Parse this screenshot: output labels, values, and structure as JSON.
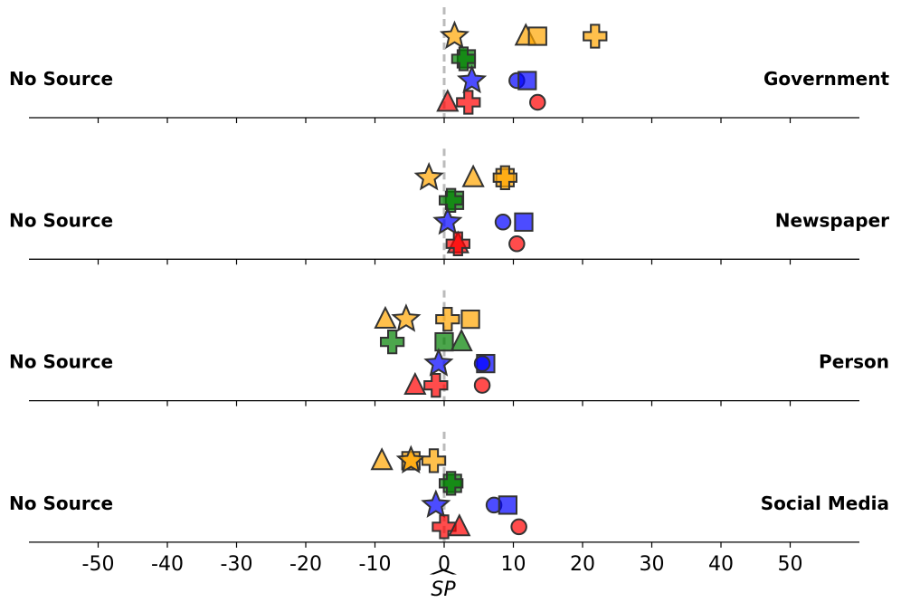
{
  "chart_data": {
    "type": "scatter",
    "xlabel": "SP",
    "xlabel_hat": "^",
    "xlim": [
      -60,
      60
    ],
    "xticks": [
      -50,
      -40,
      -30,
      -20,
      -10,
      0,
      10,
      20,
      30,
      40,
      50
    ],
    "xtick_labels": [
      "-50",
      "-40",
      "-30",
      "-20",
      "-10",
      "0",
      "10",
      "20",
      "30",
      "40",
      "50"
    ],
    "reference_line_x": 0,
    "colors": {
      "orange": "#FFA500",
      "green": "#008000",
      "blue": "#0000FF",
      "red": "#FF0000",
      "ref_line": "#BBBBBB"
    },
    "panels": [
      {
        "left_label": "No Source",
        "right_label": "Government",
        "points": [
          {
            "color": "orange",
            "marker": "star",
            "row": 0,
            "x": 1.5
          },
          {
            "color": "orange",
            "marker": "triangle",
            "row": 0,
            "x": 11.8
          },
          {
            "color": "orange",
            "marker": "square",
            "row": 0,
            "x": 13.5
          },
          {
            "color": "orange",
            "marker": "plus",
            "row": 0,
            "x": 21.8
          },
          {
            "color": "green",
            "marker": "square",
            "row": 1,
            "x": 3.2
          },
          {
            "color": "green",
            "marker": "plus",
            "row": 1,
            "x": 2.8
          },
          {
            "color": "blue",
            "marker": "star",
            "row": 2,
            "x": 4.0
          },
          {
            "color": "blue",
            "marker": "circle",
            "row": 2,
            "x": 10.5
          },
          {
            "color": "blue",
            "marker": "square",
            "row": 2,
            "x": 12.0
          },
          {
            "color": "red",
            "marker": "triangle",
            "row": 3,
            "x": 0.5
          },
          {
            "color": "red",
            "marker": "plus",
            "row": 3,
            "x": 3.5
          },
          {
            "color": "red",
            "marker": "circle",
            "row": 3,
            "x": 13.5
          }
        ]
      },
      {
        "left_label": "No Source",
        "right_label": "Newspaper",
        "points": [
          {
            "color": "orange",
            "marker": "star",
            "row": 0,
            "x": -2.2
          },
          {
            "color": "orange",
            "marker": "triangle",
            "row": 0,
            "x": 4.2
          },
          {
            "color": "orange",
            "marker": "square",
            "row": 0,
            "x": 8.8
          },
          {
            "color": "orange",
            "marker": "plus",
            "row": 0,
            "x": 8.8
          },
          {
            "color": "green",
            "marker": "square",
            "row": 1,
            "x": 1.5
          },
          {
            "color": "green",
            "marker": "plus",
            "row": 1,
            "x": 1.0
          },
          {
            "color": "blue",
            "marker": "star",
            "row": 2,
            "x": 0.5
          },
          {
            "color": "blue",
            "marker": "circle",
            "row": 2,
            "x": 8.5
          },
          {
            "color": "blue",
            "marker": "square",
            "row": 2,
            "x": 11.5
          },
          {
            "color": "red",
            "marker": "triangle",
            "row": 3,
            "x": 2.0
          },
          {
            "color": "red",
            "marker": "plus",
            "row": 3,
            "x": 2.0
          },
          {
            "color": "red",
            "marker": "circle",
            "row": 3,
            "x": 10.5
          }
        ]
      },
      {
        "left_label": "No Source",
        "right_label": "Person",
        "points": [
          {
            "color": "orange",
            "marker": "triangle",
            "row": 0,
            "x": -8.5
          },
          {
            "color": "orange",
            "marker": "star",
            "row": 0,
            "x": -5.5
          },
          {
            "color": "orange",
            "marker": "plus",
            "row": 0,
            "x": 0.5
          },
          {
            "color": "orange",
            "marker": "square",
            "row": 0,
            "x": 3.8
          },
          {
            "color": "green",
            "marker": "plus",
            "row": 1,
            "x": -7.5
          },
          {
            "color": "green",
            "marker": "square",
            "row": 1,
            "x": 0.0
          },
          {
            "color": "green",
            "marker": "triangle",
            "row": 1,
            "x": 2.5
          },
          {
            "color": "blue",
            "marker": "star",
            "row": 2,
            "x": -0.8
          },
          {
            "color": "blue",
            "marker": "square",
            "row": 2,
            "x": 6.0
          },
          {
            "color": "blue",
            "marker": "circle",
            "row": 2,
            "x": 5.5
          },
          {
            "color": "red",
            "marker": "triangle",
            "row": 3,
            "x": -4.2
          },
          {
            "color": "red",
            "marker": "plus",
            "row": 3,
            "x": -1.2
          },
          {
            "color": "red",
            "marker": "circle",
            "row": 3,
            "x": 5.5
          }
        ]
      },
      {
        "left_label": "No Source",
        "right_label": "Social Media",
        "points": [
          {
            "color": "orange",
            "marker": "triangle",
            "row": 0,
            "x": -9.0
          },
          {
            "color": "orange",
            "marker": "square",
            "row": 0,
            "x": -4.8
          },
          {
            "color": "orange",
            "marker": "star",
            "row": 0,
            "x": -4.8
          },
          {
            "color": "orange",
            "marker": "plus",
            "row": 0,
            "x": -1.5
          },
          {
            "color": "green",
            "marker": "square",
            "row": 1,
            "x": 1.2
          },
          {
            "color": "green",
            "marker": "plus",
            "row": 1,
            "x": 1.0
          },
          {
            "color": "blue",
            "marker": "star",
            "row": 2,
            "x": -1.2
          },
          {
            "color": "blue",
            "marker": "circle",
            "row": 2,
            "x": 7.2
          },
          {
            "color": "blue",
            "marker": "square",
            "row": 2,
            "x": 9.2
          },
          {
            "color": "red",
            "marker": "plus",
            "row": 3,
            "x": 0.0
          },
          {
            "color": "red",
            "marker": "triangle",
            "row": 3,
            "x": 2.2
          },
          {
            "color": "red",
            "marker": "circle",
            "row": 3,
            "x": 10.8
          }
        ]
      }
    ]
  }
}
